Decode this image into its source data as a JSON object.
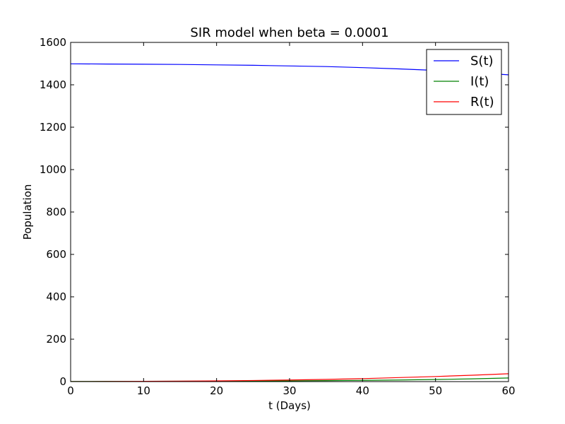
{
  "chart_data": {
    "type": "line",
    "title": "SIR model when beta = 0.0001",
    "xlabel": "t (Days)",
    "ylabel": "Population",
    "xlim": [
      0,
      60
    ],
    "ylim": [
      0,
      1600
    ],
    "xticks": [
      0,
      10,
      20,
      30,
      40,
      50,
      60
    ],
    "yticks": [
      0,
      200,
      400,
      600,
      800,
      1000,
      1200,
      1400,
      1600
    ],
    "xtick_labels": [
      "0",
      "10",
      "20",
      "30",
      "40",
      "50",
      "60"
    ],
    "ytick_labels": [
      "0",
      "200",
      "400",
      "600",
      "800",
      "1000",
      "1200",
      "1400",
      "1600"
    ],
    "grid": false,
    "legend_position": "top-right",
    "x": [
      0,
      5,
      10,
      15,
      20,
      25,
      30,
      35,
      40,
      45,
      50,
      55,
      60
    ],
    "series": [
      {
        "name": "S(t)",
        "color": "#0000ff",
        "values": [
          1499,
          1498,
          1497,
          1496,
          1494,
          1492,
          1489,
          1486,
          1481,
          1475,
          1468,
          1458,
          1447
        ]
      },
      {
        "name": "I(t)",
        "color": "#008000",
        "values": [
          1,
          1.2,
          1.5,
          1.8,
          2.2,
          2.8,
          3.5,
          4.5,
          5.8,
          7.5,
          10,
          13,
          17
        ]
      },
      {
        "name": "R(t)",
        "color": "#ff0000",
        "values": [
          0,
          0.5,
          1.2,
          2.2,
          3.5,
          5.2,
          7.5,
          10.5,
          14,
          19,
          24,
          30,
          37
        ]
      }
    ]
  }
}
